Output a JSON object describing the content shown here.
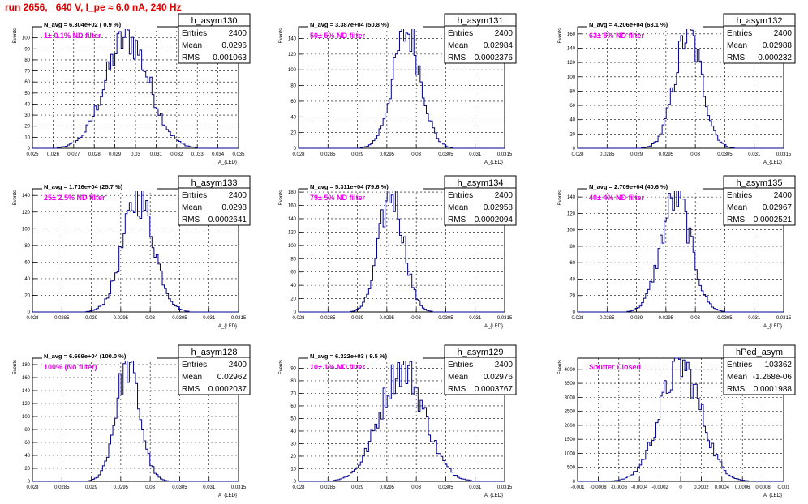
{
  "title": "run 2656,   640 V, I_pe ≈ 6.0 nA, 240 Hz",
  "axis_labels": {
    "y": "Events",
    "x": "A_{LED}"
  },
  "stat_labels": {
    "entries": "Entries",
    "mean": "Mean",
    "rms": "RMS"
  },
  "colors": {
    "hist": "#00008b",
    "label": "#ee00ee",
    "title": "#e00000",
    "grid": "#000000"
  },
  "chart_data": [
    {
      "type": "histogram",
      "name": "h_asym130",
      "entries": "2400",
      "mean": "0.0296",
      "rms": "0.001063",
      "navg": "N_avg = 6.304e+02 ( 0.9 %)",
      "filter": "1± 0.1% ND filter",
      "xlim": [
        0.025,
        0.035
      ],
      "xticks": [
        "0.025",
        "0.026",
        "0.027",
        "0.028",
        "0.029",
        "0.03",
        "0.031",
        "0.032",
        "0.033",
        "0.034",
        "0.035"
      ],
      "ylim": [
        0,
        110
      ],
      "yticks": [
        0,
        10,
        20,
        30,
        40,
        50,
        60,
        70,
        80,
        90,
        100
      ],
      "mu": 0.0296,
      "sigma": 0.00106,
      "peak": 100
    },
    {
      "type": "histogram",
      "name": "h_asym131",
      "entries": "2400",
      "mean": "0.02984",
      "rms": "0.0002376",
      "navg": "N_avg = 3.387e+04 (50.8 %)",
      "filter": "50± 5% ND filter",
      "xlim": [
        0.028,
        0.0315
      ],
      "xticks": [
        "0.028",
        "0.0285",
        "0.029",
        "0.0295",
        "0.03",
        "0.0305",
        "0.031",
        "0.0315"
      ],
      "ylim": [
        0,
        155
      ],
      "yticks": [
        0,
        20,
        40,
        60,
        80,
        100,
        120,
        140
      ],
      "mu": 0.02984,
      "sigma": 0.000238,
      "peak": 148
    },
    {
      "type": "histogram",
      "name": "h_asym132",
      "entries": "2400",
      "mean": "0.02988",
      "rms": "0.000232",
      "navg": "N_avg = 4.206e+04 (63.1 %)",
      "filter": "63± 5% ND filter",
      "xlim": [
        0.028,
        0.0315
      ],
      "xticks": [
        "0.028",
        "0.0285",
        "0.029",
        "0.0295",
        "0.03",
        "0.0305",
        "0.031",
        "0.0315"
      ],
      "ylim": [
        0,
        170
      ],
      "yticks": [
        0,
        20,
        40,
        60,
        80,
        100,
        120,
        140,
        160
      ],
      "mu": 0.02988,
      "sigma": 0.000232,
      "peak": 160
    },
    {
      "type": "histogram",
      "name": "h_asym133",
      "entries": "2400",
      "mean": "0.0298",
      "rms": "0.0002641",
      "navg": "N_avg = 1.716e+04 (25.7 %)",
      "filter": "25± 2.5% ND filter",
      "xlim": [
        0.028,
        0.0315
      ],
      "xticks": [
        "0.028",
        "0.0285",
        "0.029",
        "0.0295",
        "0.03",
        "0.0305",
        "0.031",
        "0.0315"
      ],
      "ylim": [
        0,
        148
      ],
      "yticks": [
        0,
        20,
        40,
        60,
        80,
        100,
        120,
        140
      ],
      "mu": 0.0298,
      "sigma": 0.000264,
      "peak": 137
    },
    {
      "type": "histogram",
      "name": "h_asym134",
      "entries": "2400",
      "mean": "0.02958",
      "rms": "0.0002094",
      "navg": "N_avg = 5.311e+04 (79.6 %)",
      "filter": "79± 5% ND filter",
      "xlim": [
        0.028,
        0.0315
      ],
      "xticks": [
        "0.028",
        "0.0285",
        "0.029",
        "0.0295",
        "0.03",
        "0.0305",
        "0.031",
        "0.0315"
      ],
      "ylim": [
        0,
        185
      ],
      "yticks": [
        0,
        20,
        40,
        60,
        80,
        100,
        120,
        140,
        160,
        180
      ],
      "mu": 0.02958,
      "sigma": 0.000209,
      "peak": 178
    },
    {
      "type": "histogram",
      "name": "h_asym135",
      "entries": "2400",
      "mean": "0.02967",
      "rms": "0.0002521",
      "navg": "N_avg = 2.709e+04 (40.6 %)",
      "filter": "40± 4% ND filter",
      "xlim": [
        0.028,
        0.0315
      ],
      "xticks": [
        "0.028",
        "0.0285",
        "0.029",
        "0.0295",
        "0.03",
        "0.0305",
        "0.031",
        "0.0315"
      ],
      "ylim": [
        0,
        150
      ],
      "yticks": [
        0,
        20,
        40,
        60,
        80,
        100,
        120,
        140
      ],
      "mu": 0.02967,
      "sigma": 0.000252,
      "peak": 140
    },
    {
      "type": "histogram",
      "name": "h_asym128",
      "entries": "2400",
      "mean": "0.02962",
      "rms": "0.0002037",
      "navg": "N_avg = 6.669e+04 (100.0 %)",
      "filter": "100% (No filter)",
      "xlim": [
        0.028,
        0.0315
      ],
      "xticks": [
        "0.028",
        "0.0285",
        "0.029",
        "0.0295",
        "0.03",
        "0.0305",
        "0.031",
        "0.0315"
      ],
      "ylim": [
        0,
        190
      ],
      "yticks": [
        0,
        20,
        40,
        60,
        80,
        100,
        120,
        140,
        160,
        180
      ],
      "mu": 0.02962,
      "sigma": 0.000204,
      "peak": 178
    },
    {
      "type": "histogram",
      "name": "h_asym129",
      "entries": "2400",
      "mean": "0.02976",
      "rms": "0.0003767",
      "navg": "N_avg = 6.322e+03 ( 9.5 %)",
      "filter": "10± 1% ND filter",
      "xlim": [
        0.028,
        0.0315
      ],
      "xticks": [
        "0.028",
        "0.0285",
        "0.029",
        "0.0295",
        "0.03",
        "0.0305",
        "0.031",
        "0.0315"
      ],
      "ylim": [
        0,
        98
      ],
      "yticks": [
        0,
        10,
        20,
        30,
        40,
        50,
        60,
        70,
        80,
        90
      ],
      "mu": 0.02976,
      "sigma": 0.000377,
      "peak": 90
    },
    {
      "type": "histogram",
      "name": "hPed_asym",
      "entries": "103362",
      "mean": "-1.268e-06",
      "rms": "0.0001988",
      "navg": "",
      "filter": "Shutter Closed",
      "xlim": [
        -0.001,
        0.001
      ],
      "xticks": [
        "-0.001",
        "-0.0008",
        "-0.0006",
        "-0.0004",
        "-0.0002",
        "0",
        "0.0002",
        "0.0004",
        "0.0006",
        "0.0008",
        "0.001"
      ],
      "ylim": [
        0,
        4400
      ],
      "yticks": [
        0,
        500,
        1000,
        1500,
        2000,
        2500,
        3000,
        3500,
        4000
      ],
      "mu": 0.0,
      "sigma": 0.000199,
      "peak": 4150
    }
  ]
}
